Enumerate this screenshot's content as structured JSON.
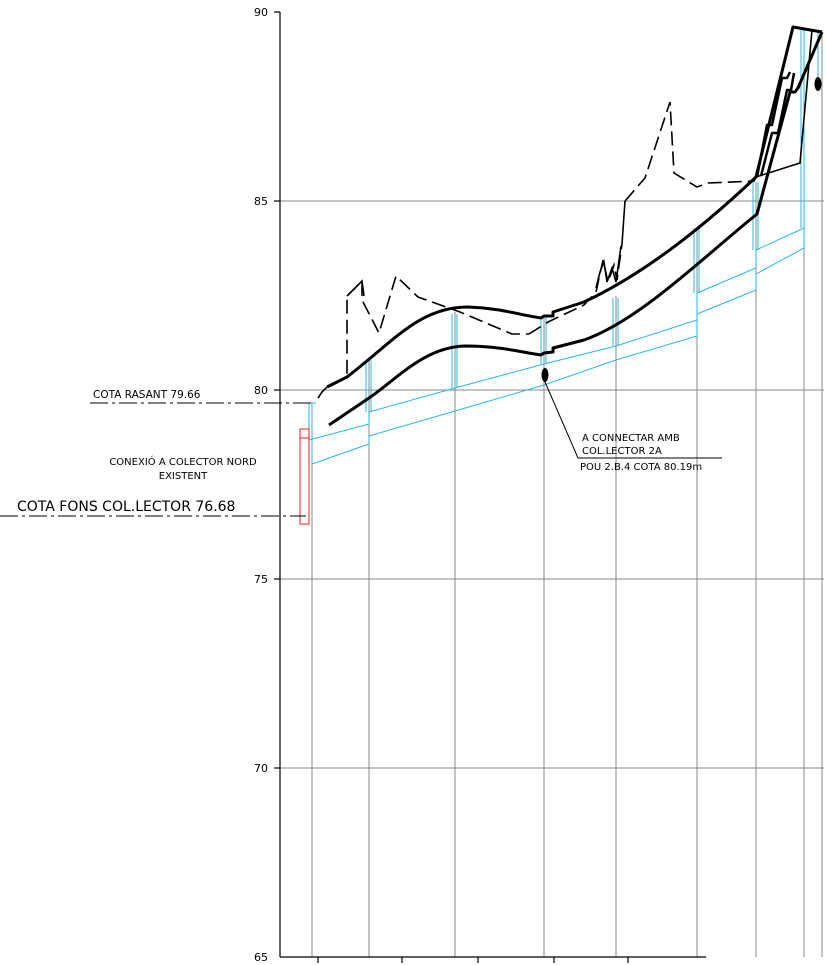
{
  "axis": {
    "y_ticks": [
      "90",
      "85",
      "80",
      "75",
      "70",
      "65"
    ]
  },
  "annotations": {
    "cota_rasant": "COTA RASANT 79.66",
    "conexio_line1": "CONEXIÓ A COLECTOR NORD",
    "conexio_line2": "EXISTENT",
    "cota_fons": "COTA FONS COL.LECTOR 76.68",
    "connectar_line1": "A CONNECTAR AMB",
    "connectar_line2": "COL.LECTOR 2A",
    "pou": "POU 2.B.4 COTA 80.19m"
  },
  "colors": {
    "grid": "#8a8a8a",
    "profile": "#000000",
    "pipe": "#29b6e6",
    "connection": "#e02020"
  }
}
